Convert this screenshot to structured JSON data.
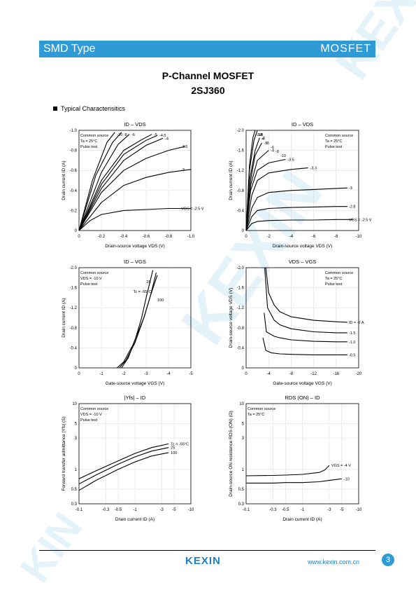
{
  "header": {
    "left": "SMD Type",
    "right": "MOSFET"
  },
  "title": {
    "line1": "P-Channel MOSFET",
    "line2": "2SJ360"
  },
  "section": "Typical  Characterisitics",
  "footer": {
    "logo": "KEXIN",
    "url": "www.kexin.com.cn",
    "page": "3"
  },
  "colors": {
    "accent": "#2e9ad6",
    "text": "#000000"
  },
  "chart_data": [
    {
      "type": "line",
      "title": "ID – VDS",
      "xlabel": "Drain-source voltage  VDS  (V)",
      "ylabel": "Drain current  ID  (A)",
      "xlim": [
        0,
        -1.0
      ],
      "ylim": [
        0,
        -1.0
      ],
      "x_ticks": [
        "0",
        "-0.2",
        "-0.4",
        "-0.6",
        "-0.8",
        "-1.0"
      ],
      "y_ticks": [
        "0",
        "-0.2",
        "-0.4",
        "-0.6",
        "-0.8",
        "-1.0"
      ],
      "legend_box": [
        "Common source",
        "Ta = 25°C",
        "Pulse test"
      ],
      "series": [
        {
          "label": "VGS = -2.5 V",
          "x": [
            0,
            -0.1,
            -0.2,
            -0.4,
            -0.6,
            -0.8,
            -1.0
          ],
          "y": [
            0,
            -0.1,
            -0.16,
            -0.2,
            -0.21,
            -0.22,
            -0.22
          ]
        },
        {
          "label": "-3",
          "x": [
            0,
            -0.2,
            -0.4,
            -0.6,
            -0.8,
            -1.0
          ],
          "y": [
            0,
            -0.28,
            -0.45,
            -0.53,
            -0.58,
            -0.61
          ]
        },
        {
          "label": "-3.5",
          "x": [
            0,
            -0.2,
            -0.4,
            -0.6,
            -0.8,
            -0.95
          ],
          "y": [
            0,
            -0.38,
            -0.6,
            -0.72,
            -0.8,
            -0.84
          ]
        },
        {
          "label": "-4",
          "x": [
            0,
            -0.2,
            -0.4,
            -0.6,
            -0.75
          ],
          "y": [
            0,
            -0.42,
            -0.7,
            -0.85,
            -0.92
          ]
        },
        {
          "label": "-4.5",
          "x": [
            0,
            -0.2,
            -0.4,
            -0.6,
            -0.7
          ],
          "y": [
            0,
            -0.46,
            -0.76,
            -0.9,
            -0.95
          ]
        },
        {
          "label": "-5",
          "x": [
            0,
            -0.2,
            -0.4,
            -0.55,
            -0.65
          ],
          "y": [
            0,
            -0.5,
            -0.8,
            -0.9,
            -0.96
          ]
        },
        {
          "label": "-6",
          "x": [
            0,
            -0.2,
            -0.35,
            -0.45
          ],
          "y": [
            0,
            -0.58,
            -0.86,
            -0.96
          ]
        },
        {
          "label": "-8",
          "x": [
            0,
            -0.15,
            -0.3,
            -0.38
          ],
          "y": [
            0,
            -0.55,
            -0.88,
            -0.98
          ]
        },
        {
          "label": "-10",
          "x": [
            0,
            -0.12,
            -0.25,
            -0.32
          ],
          "y": [
            0,
            -0.5,
            -0.88,
            -0.98
          ]
        }
      ]
    },
    {
      "type": "line",
      "title": "ID – VDS",
      "xlabel": "Drain-source voltage  VDS  (V)",
      "ylabel": "Drain current  ID  (A)",
      "xlim": [
        0,
        -10
      ],
      "ylim": [
        0,
        -2.0
      ],
      "x_ticks": [
        "0",
        "-2",
        "-4",
        "-6",
        "-8",
        "-10"
      ],
      "y_ticks": [
        "0",
        "-0.4",
        "-0.8",
        "-1.2",
        "-1.6",
        "-2.0"
      ],
      "legend_box": [
        "Common source",
        "Ta = 25°C",
        "Pulse test"
      ],
      "series": [
        {
          "label": "VGS = -2.5 V",
          "x": [
            0,
            -0.5,
            -1,
            -2,
            -4,
            -6,
            -8,
            -9.5
          ],
          "y": [
            0,
            -0.14,
            -0.18,
            -0.2,
            -0.21,
            -0.21,
            -0.22,
            -0.22
          ]
        },
        {
          "label": "-2.8",
          "x": [
            0,
            -0.5,
            -1,
            -2,
            -4,
            -6,
            -8,
            -9
          ],
          "y": [
            0,
            -0.28,
            -0.4,
            -0.44,
            -0.46,
            -0.47,
            -0.48,
            -0.48
          ]
        },
        {
          "label": "-3",
          "x": [
            0,
            -0.5,
            -1,
            -2,
            -4,
            -6,
            -8,
            -9
          ],
          "y": [
            0,
            -0.45,
            -0.66,
            -0.76,
            -0.8,
            -0.82,
            -0.84,
            -0.85
          ]
        },
        {
          "label": "-3.3",
          "x": [
            0,
            -0.5,
            -1,
            -2,
            -4,
            -5.5
          ],
          "y": [
            0,
            -0.7,
            -1.0,
            -1.15,
            -1.22,
            -1.25
          ]
        },
        {
          "label": "-3.5",
          "x": [
            0,
            -0.4,
            -1,
            -2,
            -3.5
          ],
          "y": [
            0,
            -0.8,
            -1.2,
            -1.35,
            -1.42
          ]
        },
        {
          "label": "-4",
          "x": [
            0,
            -0.4,
            -1,
            -2
          ],
          "y": [
            0,
            -0.9,
            -1.4,
            -1.6
          ]
        },
        {
          "label": "-5",
          "x": [
            0,
            -0.4,
            -0.8,
            -1.4
          ],
          "y": [
            0,
            -1.0,
            -1.5,
            -1.75
          ]
        },
        {
          "label": "-6",
          "x": [
            0,
            -0.3,
            -0.8,
            -1.2
          ],
          "y": [
            0,
            -1.0,
            -1.6,
            -1.85
          ]
        },
        {
          "label": "-8",
          "x": [
            0,
            -0.3,
            -0.7,
            -1.0
          ],
          "y": [
            0,
            -1.2,
            -1.8,
            -2.0
          ]
        },
        {
          "label": "-10",
          "x": [
            0,
            -0.3,
            -0.6,
            -0.8
          ],
          "y": [
            0,
            -1.3,
            -1.85,
            -2.0
          ]
        }
      ],
      "extra_labels": [
        "-3.8",
        "-4",
        "-5",
        "-6",
        "-8",
        "-10"
      ]
    },
    {
      "type": "line",
      "title": "ID – VGS",
      "xlabel": "Gate-source voltage  VGS  (V)",
      "ylabel": "Drain current  ID  (A)",
      "xlim": [
        0,
        -5
      ],
      "ylim": [
        0,
        -2.0
      ],
      "x_ticks": [
        "0",
        "-1",
        "-2",
        "-3",
        "-4",
        "-5"
      ],
      "y_ticks": [
        "0",
        "-0.4",
        "-0.8",
        "-1.2",
        "-1.6",
        "-2.0"
      ],
      "legend_box": [
        "Common source",
        "VDS = -10 V",
        "Pulse test"
      ],
      "series": [
        {
          "label": "Tc = -55°C",
          "x": [
            -1.9,
            -2.2,
            -2.5,
            -2.8,
            -3.0,
            -3.3
          ],
          "y": [
            0,
            -0.2,
            -0.55,
            -1.0,
            -1.4,
            -1.95
          ]
        },
        {
          "label": "25",
          "x": [
            -1.8,
            -2.1,
            -2.5,
            -2.9,
            -3.2,
            -3.45
          ],
          "y": [
            0,
            -0.15,
            -0.5,
            -1.0,
            -1.45,
            -1.9
          ]
        },
        {
          "label": "100",
          "x": [
            -1.7,
            -2.0,
            -2.4,
            -2.9,
            -3.2,
            -3.5
          ],
          "y": [
            0,
            -0.12,
            -0.45,
            -1.0,
            -1.45,
            -1.85
          ]
        }
      ]
    },
    {
      "type": "line",
      "title": "VDS – VGS",
      "xlabel": "Gate-source voltage  VGS  (V)",
      "ylabel": "Drain-source voltage  VDS  (V)",
      "xlim": [
        0,
        -20
      ],
      "ylim": [
        0,
        -2.0
      ],
      "x_ticks": [
        "0",
        "-4",
        "-8",
        "-12",
        "-16",
        "-20"
      ],
      "y_ticks": [
        "0",
        "-0.4",
        "-0.8",
        "-1.2",
        "-1.6",
        "-2.0"
      ],
      "legend_box": [
        "Common source",
        "Ta = 25°C",
        "Pulse test"
      ],
      "series": [
        {
          "label": "ID = -2 A",
          "x": [
            -3.5,
            -4,
            -5,
            -6,
            -8,
            -12,
            -16,
            -18
          ],
          "y": [
            -2.0,
            -1.5,
            -1.25,
            -1.12,
            -1.02,
            -0.95,
            -0.92,
            -0.91
          ]
        },
        {
          "label": "-1.5",
          "x": [
            -3.3,
            -3.8,
            -5,
            -6,
            -8,
            -12,
            -16,
            -18
          ],
          "y": [
            -2.0,
            -1.2,
            -0.95,
            -0.86,
            -0.78,
            -0.72,
            -0.7,
            -0.7
          ]
        },
        {
          "label": "-1.0",
          "x": [
            -3.2,
            -3.6,
            -5,
            -6,
            -8,
            -12,
            -16,
            -18
          ],
          "y": [
            -1.1,
            -0.72,
            -0.63,
            -0.6,
            -0.56,
            -0.53,
            -0.52,
            -0.52
          ]
        },
        {
          "label": "-0.5",
          "x": [
            -3.0,
            -3.5,
            -4.5,
            -6,
            -8,
            -12,
            -16,
            -18
          ],
          "y": [
            -0.6,
            -0.35,
            -0.3,
            -0.28,
            -0.27,
            -0.26,
            -0.26,
            -0.26
          ]
        }
      ]
    },
    {
      "type": "line",
      "title": "|Yfs| – ID",
      "xlabel": "Drain current  ID  (A)",
      "ylabel": "Forward transfer admittance |Yfs| (S)",
      "xlog": true,
      "ylog": true,
      "xlim": [
        -0.1,
        -10
      ],
      "ylim": [
        0.3,
        10
      ],
      "x_ticks": [
        "-0.1",
        "-0.3",
        "-0.5",
        "-1",
        "-3",
        "-5",
        "-10"
      ],
      "y_ticks": [
        "0.3",
        "0.5",
        "1",
        "3",
        "5",
        "10"
      ],
      "legend_box": [
        "Common source",
        "VDS = -10 V",
        "Pulse test"
      ],
      "series": [
        {
          "label": "Tc = -55°C",
          "x": [
            -0.1,
            -0.2,
            -0.5,
            -1,
            -2,
            -4
          ],
          "y": [
            0.72,
            0.95,
            1.35,
            1.75,
            2.15,
            2.45
          ]
        },
        {
          "label": "25",
          "x": [
            -0.1,
            -0.2,
            -0.5,
            -1,
            -2,
            -4
          ],
          "y": [
            0.6,
            0.82,
            1.2,
            1.55,
            1.9,
            2.15
          ]
        },
        {
          "label": "100",
          "x": [
            -0.1,
            -0.2,
            -0.5,
            -1,
            -2,
            -4
          ],
          "y": [
            0.48,
            0.68,
            1.0,
            1.3,
            1.6,
            1.8
          ]
        }
      ]
    },
    {
      "type": "line",
      "title": "RDS (ON) – ID",
      "xlabel": "Drain current  ID  (A)",
      "ylabel": "Drain-source ON resistance RDS (ON) (Ω)",
      "xlog": true,
      "ylog": true,
      "xlim": [
        -0.1,
        -10
      ],
      "ylim": [
        0.3,
        10
      ],
      "x_ticks": [
        "-0.1",
        "-0.3",
        "-0.5",
        "-1",
        "-3",
        "-5",
        "-10"
      ],
      "y_ticks": [
        "0.3",
        "0.5",
        "1",
        "3",
        "5",
        "10"
      ],
      "legend_box": [
        "Common source",
        "Ta = 25°C"
      ],
      "series": [
        {
          "label": "VGS = -4 V",
          "x": [
            -0.1,
            -0.3,
            -0.5,
            -1,
            -2,
            -2.5,
            -3
          ],
          "y": [
            0.8,
            0.81,
            0.82,
            0.84,
            0.9,
            0.98,
            1.15
          ]
        },
        {
          "label": "-10",
          "x": [
            -0.1,
            -0.3,
            -0.5,
            -1,
            -2,
            -3,
            -5
          ],
          "y": [
            0.62,
            0.62,
            0.63,
            0.63,
            0.65,
            0.68,
            0.72
          ]
        }
      ]
    }
  ]
}
